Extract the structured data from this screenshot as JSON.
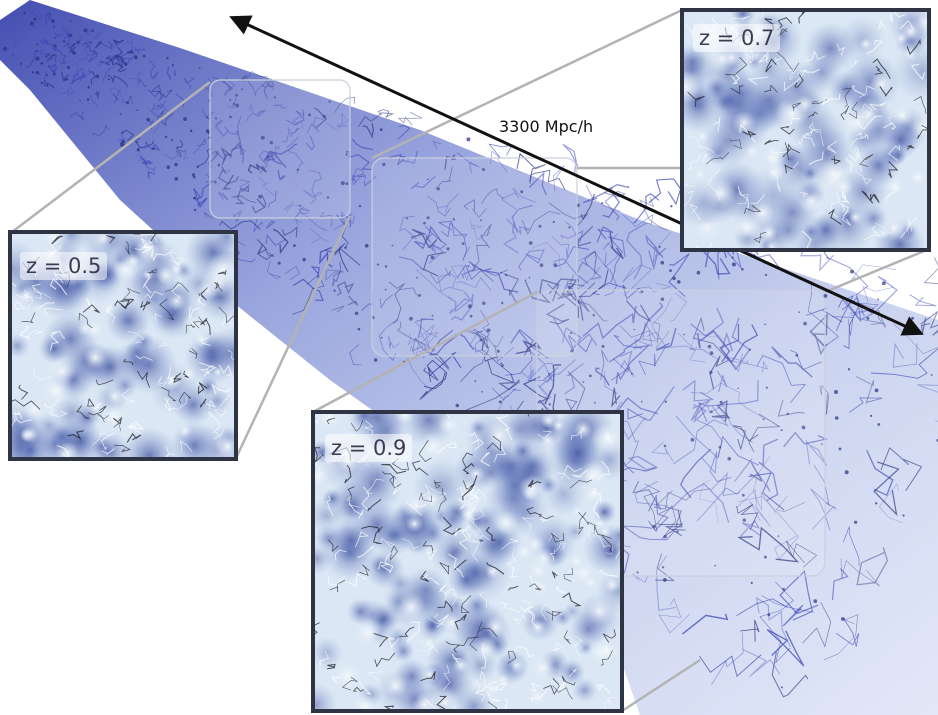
{
  "figure": {
    "scale_label": "3300 Mpc/h",
    "insets": [
      {
        "id": "z05",
        "label": "z = 0.5"
      },
      {
        "id": "z07",
        "label": "z = 0.7"
      },
      {
        "id": "z09",
        "label": "z = 0.9"
      }
    ]
  },
  "colors": {
    "filament": "#3d47b5",
    "filament_dark": "#26307f",
    "void_light": "#e4eef8",
    "density_mid": "#9db8db",
    "density_high": "#5468ad",
    "frame": "#2f3444",
    "connector": "#b3b3b3",
    "arrow": "#111111"
  }
}
